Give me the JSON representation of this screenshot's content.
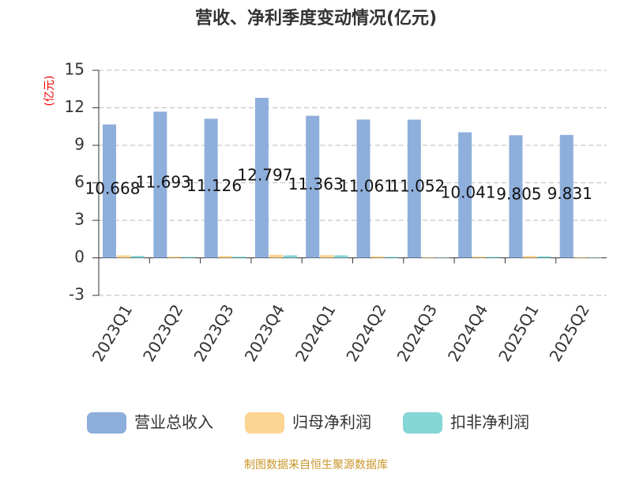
{
  "chart_data": {
    "type": "bar",
    "title": "营收、净利季度变动情况(亿元)",
    "y_axis_label": "(亿元)",
    "source": "制图数据来自恒生聚源数据库",
    "categories": [
      "2023Q1",
      "2023Q2",
      "2023Q3",
      "2023Q4",
      "2024Q1",
      "2024Q2",
      "2024Q3",
      "2024Q4",
      "2025Q1",
      "2025Q2"
    ],
    "series": [
      {
        "name": "营业总收入",
        "color": "#8eaedb",
        "values": [
          10.668,
          11.693,
          11.126,
          12.797,
          11.363,
          11.061,
          11.052,
          10.041,
          9.805,
          9.831
        ]
      },
      {
        "name": "归母净利润",
        "color": "#fcd592",
        "values": [
          0.2,
          0.1,
          0.15,
          0.25,
          0.22,
          0.12,
          0.05,
          0.1,
          0.15,
          0.05
        ]
      },
      {
        "name": "扣非净利润",
        "color": "#85d6d6",
        "values": [
          0.15,
          0.08,
          0.1,
          0.2,
          0.2,
          0.08,
          0.03,
          0.08,
          0.12,
          0.04
        ]
      }
    ],
    "data_labels_series": 0,
    "ylim": [
      -3,
      15
    ],
    "yticks": [
      -3,
      0,
      3,
      6,
      9,
      12,
      15
    ],
    "grid": true,
    "legend": "bottom"
  }
}
